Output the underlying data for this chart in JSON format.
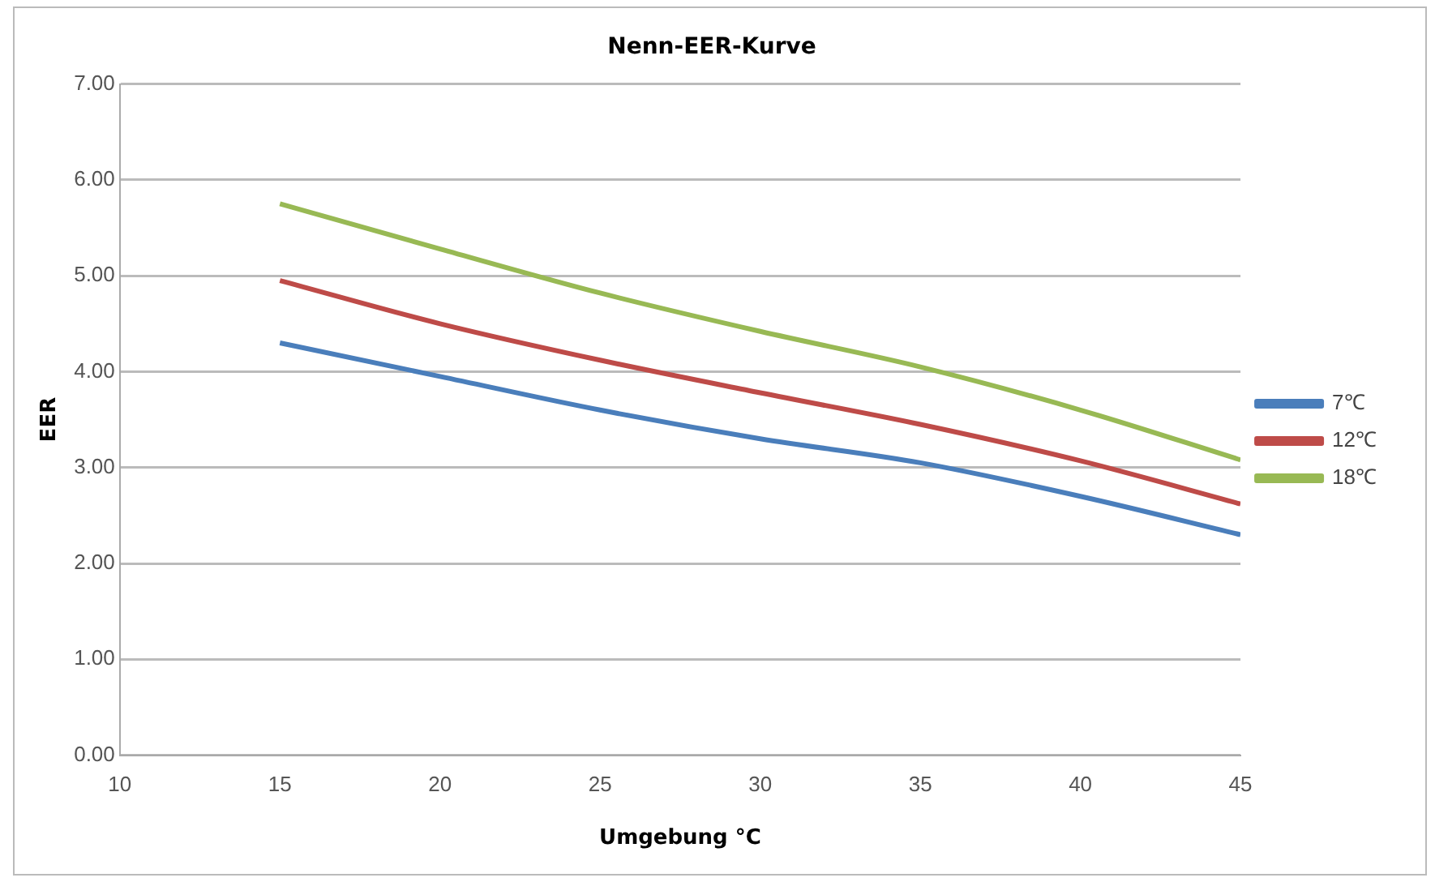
{
  "chart_data": {
    "type": "line",
    "title": "Nenn-EER-Kurve",
    "xlabel": "Umgebung °C",
    "ylabel": "EER",
    "x": [
      15,
      20,
      25,
      30,
      35,
      40,
      45
    ],
    "series": [
      {
        "name": "7℃",
        "color": "#4a7ebb",
        "values": [
          4.3,
          3.95,
          3.6,
          3.3,
          3.05,
          2.7,
          2.3
        ]
      },
      {
        "name": "12℃",
        "color": "#be4b48",
        "values": [
          4.95,
          4.5,
          4.12,
          3.78,
          3.45,
          3.07,
          2.62
        ]
      },
      {
        "name": "18℃",
        "color": "#98b954",
        "values": [
          5.75,
          5.28,
          4.82,
          4.42,
          4.05,
          3.6,
          3.08
        ]
      }
    ],
    "xlim": [
      10,
      45
    ],
    "xticks": [
      10,
      15,
      20,
      25,
      30,
      35,
      40,
      45
    ],
    "ylim": [
      0,
      7
    ],
    "yticks": [
      {
        "value": 0,
        "label": "0.00"
      },
      {
        "value": 1,
        "label": "1.00"
      },
      {
        "value": 2,
        "label": "2.00"
      },
      {
        "value": 3,
        "label": "3.00"
      },
      {
        "value": 4,
        "label": "4.00"
      },
      {
        "value": 5,
        "label": "5.00"
      },
      {
        "value": 6,
        "label": "6.00"
      },
      {
        "value": 7,
        "label": "7.00"
      }
    ],
    "grid": "y",
    "legend": "right",
    "marker": "none",
    "line_style": "solid"
  }
}
